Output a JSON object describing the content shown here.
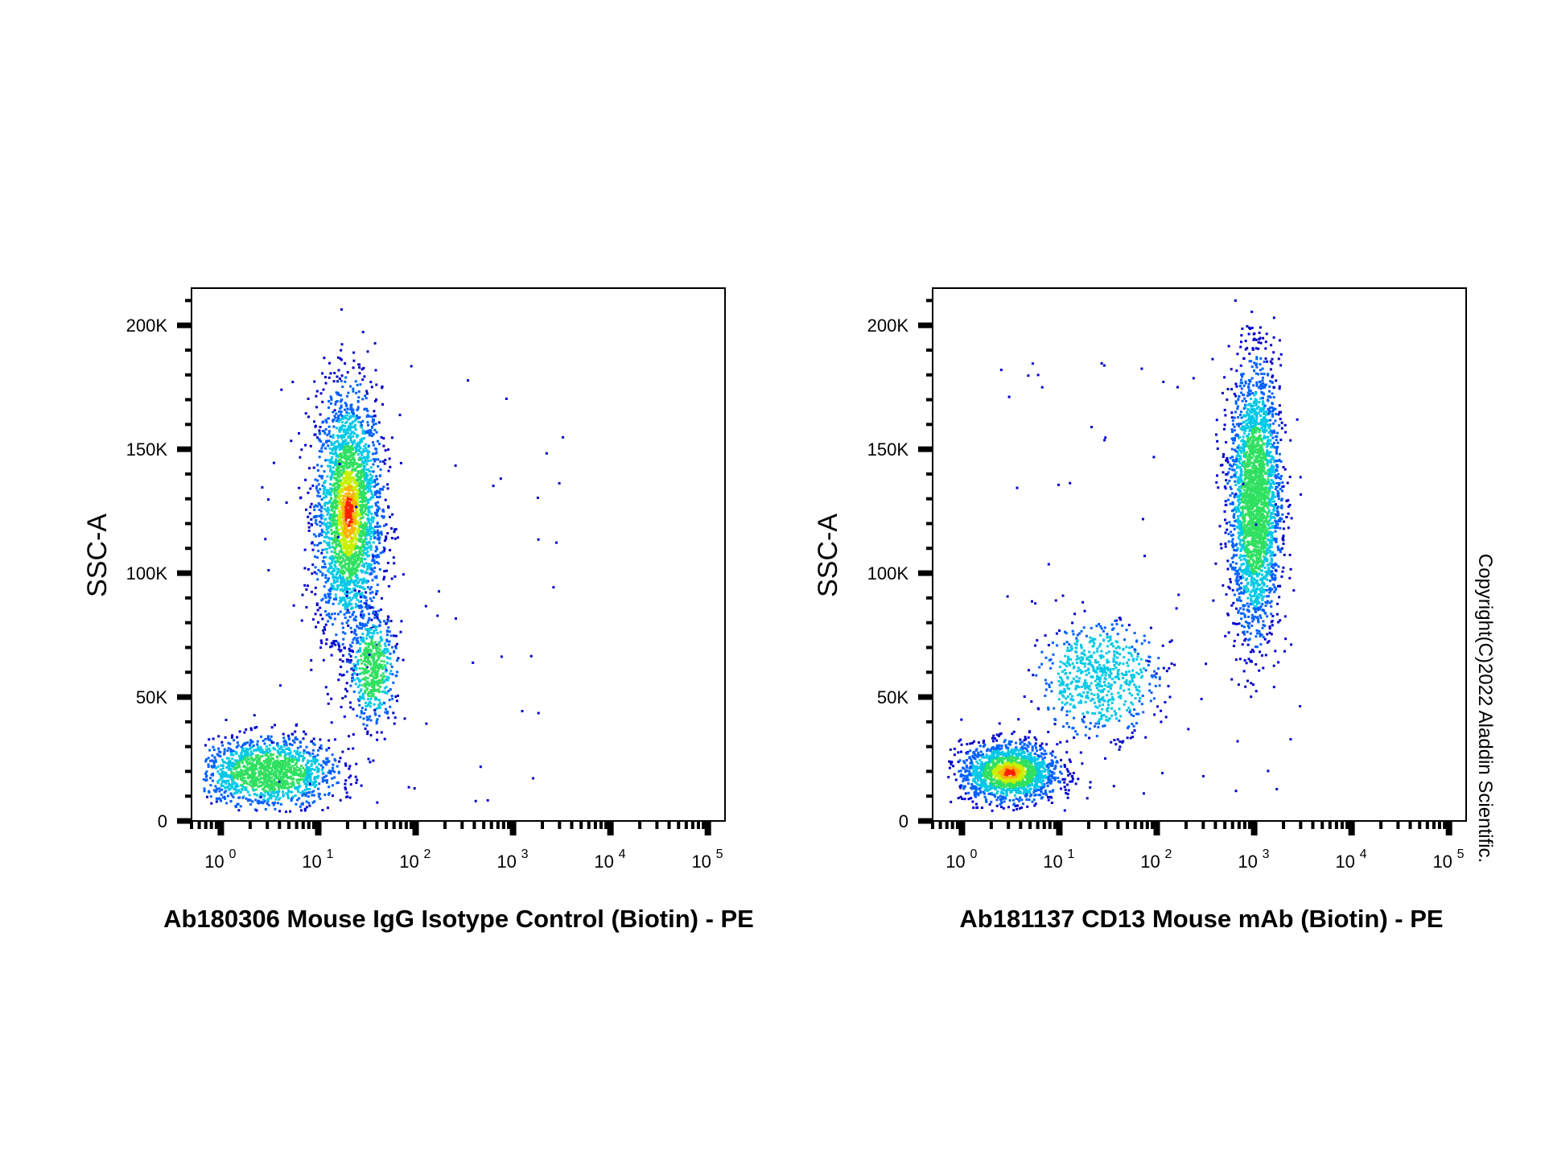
{
  "figure": {
    "copyright": "Copyright(C)2022 Aladdin Scientific."
  },
  "colors": {
    "density_scale": [
      "#0000cc",
      "#0060ff",
      "#00c8e6",
      "#30e060",
      "#c8f000",
      "#ffb000",
      "#ff2000"
    ],
    "axis": "#000000",
    "background": "#ffffff"
  },
  "chart_data": [
    {
      "type": "scatter",
      "style": "flow cytometry pseudocolor density dot plot",
      "xlabel": "Ab180306 Mouse IgG Isotype Control (Biotin) - PE",
      "ylabel": "SSC-A",
      "xscale": "log",
      "xlim": [
        0.5,
        150000
      ],
      "ylim": [
        0,
        215000
      ],
      "x_ticks": [
        {
          "base": "10",
          "exp": "0"
        },
        {
          "base": "10",
          "exp": "1"
        },
        {
          "base": "10",
          "exp": "2"
        },
        {
          "base": "10",
          "exp": "3"
        },
        {
          "base": "10",
          "exp": "4"
        },
        {
          "base": "10",
          "exp": "5"
        }
      ],
      "y_ticks": [
        "0",
        "50K",
        "100K",
        "150K",
        "200K"
      ],
      "y_tick_values": [
        0,
        50000,
        100000,
        150000,
        200000
      ],
      "grid": false,
      "populations": [
        {
          "name": "",
          "center_x": 20,
          "center_y": 125000,
          "spread_log_x": 0.17,
          "spread_y": 25000,
          "relative_density": 1.0,
          "peak_color": "red"
        },
        {
          "name": "",
          "center_x": 3,
          "center_y": 20000,
          "spread_log_x": 0.35,
          "spread_y": 7000,
          "relative_density": 0.55,
          "peak_color": "green"
        },
        {
          "name": "",
          "center_x": 35,
          "center_y": 62000,
          "spread_log_x": 0.12,
          "spread_y": 11000,
          "relative_density": 0.2,
          "peak_color": "green"
        }
      ]
    },
    {
      "type": "scatter",
      "style": "flow cytometry pseudocolor density dot plot",
      "xlabel": "Ab181137 CD13 Mouse mAb (Biotin) - PE",
      "ylabel": "SSC-A",
      "xscale": "log",
      "xlim": [
        0.5,
        150000
      ],
      "ylim": [
        0,
        215000
      ],
      "x_ticks": [
        {
          "base": "10",
          "exp": "0"
        },
        {
          "base": "10",
          "exp": "1"
        },
        {
          "base": "10",
          "exp": "2"
        },
        {
          "base": "10",
          "exp": "3"
        },
        {
          "base": "10",
          "exp": "4"
        },
        {
          "base": "10",
          "exp": "5"
        }
      ],
      "y_ticks": [
        "0",
        "50K",
        "100K",
        "150K",
        "200K"
      ],
      "y_tick_values": [
        0,
        50000,
        100000,
        150000,
        200000
      ],
      "grid": false,
      "populations": [
        {
          "name": "",
          "center_x": 1000,
          "center_y": 130000,
          "spread_log_x": 0.13,
          "spread_y": 27000,
          "relative_density": 1.0,
          "peak_color": "green"
        },
        {
          "name": "",
          "center_x": 3,
          "center_y": 20000,
          "spread_log_x": 0.25,
          "spread_y": 6000,
          "relative_density": 0.6,
          "peak_color": "red"
        },
        {
          "name": "",
          "center_x": 25,
          "center_y": 58000,
          "spread_log_x": 0.3,
          "spread_y": 11000,
          "relative_density": 0.25,
          "peak_color": "cyan"
        }
      ]
    }
  ]
}
